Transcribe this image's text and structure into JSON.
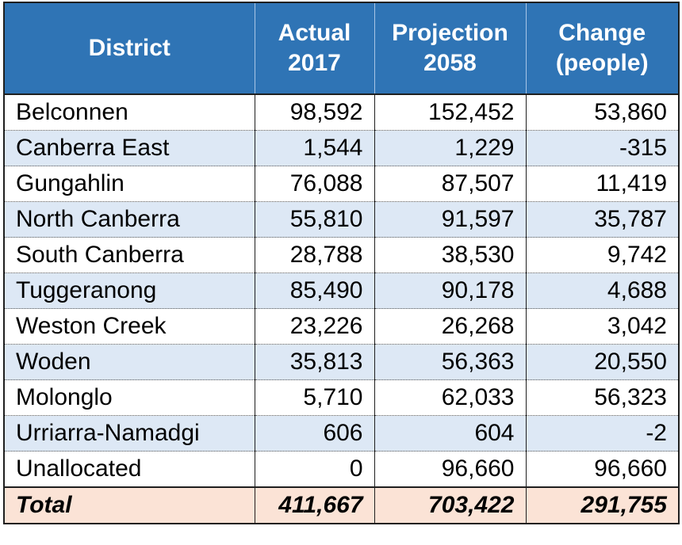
{
  "table": {
    "header": {
      "district": "District",
      "actual_line1": "Actual",
      "actual_line2": "2017",
      "projection_line1": "Projection",
      "projection_line2": "2058",
      "change_line1": "Change",
      "change_line2": "(people)"
    },
    "rows": [
      {
        "district": "Belconnen",
        "actual": "98,592",
        "projection": "152,452",
        "change": "53,860"
      },
      {
        "district": "Canberra East",
        "actual": "1,544",
        "projection": "1,229",
        "change": "-315"
      },
      {
        "district": "Gungahlin",
        "actual": "76,088",
        "projection": "87,507",
        "change": "11,419"
      },
      {
        "district": "North Canberra",
        "actual": "55,810",
        "projection": "91,597",
        "change": "35,787"
      },
      {
        "district": "South Canberra",
        "actual": "28,788",
        "projection": "38,530",
        "change": "9,742"
      },
      {
        "district": "Tuggeranong",
        "actual": "85,490",
        "projection": "90,178",
        "change": "4,688"
      },
      {
        "district": "Weston Creek",
        "actual": "23,226",
        "projection": "26,268",
        "change": "3,042"
      },
      {
        "district": "Woden",
        "actual": "35,813",
        "projection": "56,363",
        "change": "20,550"
      },
      {
        "district": "Molonglo",
        "actual": "5,710",
        "projection": "62,033",
        "change": "56,323"
      },
      {
        "district": "Urriarra-Namadgi",
        "actual": "606",
        "projection": "604",
        "change": "-2"
      },
      {
        "district": "Unallocated",
        "actual": "0",
        "projection": "96,660",
        "change": "96,660"
      }
    ],
    "total": {
      "label": "Total",
      "actual": "411,667",
      "projection": "703,422",
      "change": "291,755"
    }
  },
  "colors": {
    "header_bg": "#2f74b5",
    "band_bg": "#dde8f5",
    "total_bg": "#fbe3d6"
  }
}
